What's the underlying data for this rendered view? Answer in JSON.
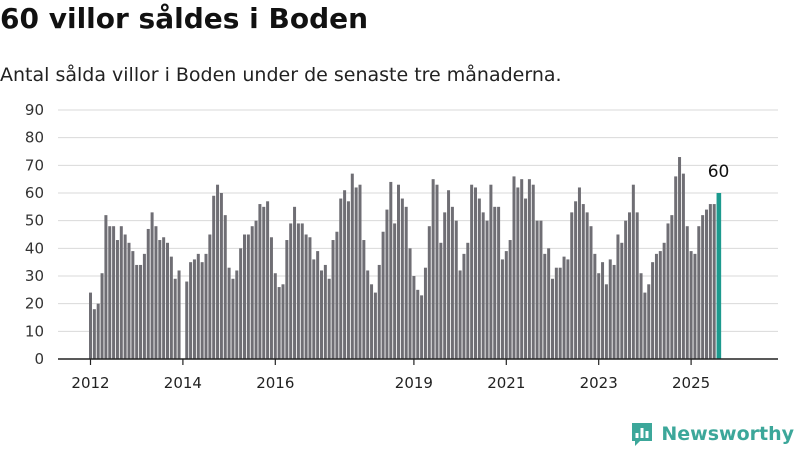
{
  "title": "60 villor såldes i Boden",
  "subtitle": "Antal sålda villor i Boden under de senaste tre månaderna.",
  "brand": {
    "name": "Newsworthy",
    "icon": "newsworthy-logo-icon"
  },
  "colors": {
    "bar": "#6f6e74",
    "highlight": "#1c9a8e",
    "grid": "#d9d9d9",
    "axis": "#222222",
    "brand": "#3ca79a"
  },
  "chart_data": {
    "type": "bar",
    "ylim": [
      0,
      90
    ],
    "yticks": [
      0,
      10,
      20,
      30,
      40,
      50,
      60,
      70,
      80,
      90
    ],
    "xticks": [
      {
        "label": "2012",
        "year": 2012
      },
      {
        "label": "2014",
        "year": 2014
      },
      {
        "label": "2016",
        "year": 2016
      },
      {
        "label": "2019",
        "year": 2019
      },
      {
        "label": "2021",
        "year": 2021
      },
      {
        "label": "2023",
        "year": 2023
      },
      {
        "label": "2025",
        "year": 2025
      }
    ],
    "x_start": "2012-01",
    "grid": "horizontal",
    "x_end": "2025-09",
    "values": [
      24,
      18,
      20,
      31,
      52,
      48,
      48,
      43,
      48,
      45,
      42,
      39,
      34,
      34,
      38,
      47,
      53,
      48,
      43,
      44,
      42,
      37,
      29,
      32,
      null,
      28,
      35,
      36,
      38,
      35,
      38,
      45,
      59,
      63,
      60,
      52,
      33,
      29,
      32,
      40,
      45,
      45,
      48,
      50,
      56,
      55,
      57,
      44,
      31,
      26,
      27,
      43,
      49,
      55,
      49,
      49,
      45,
      44,
      36,
      39,
      32,
      34,
      29,
      43,
      46,
      58,
      61,
      57,
      67,
      62,
      63,
      43,
      32,
      27,
      24,
      34,
      46,
      54,
      64,
      49,
      63,
      58,
      55,
      40,
      30,
      25,
      23,
      33,
      48,
      65,
      63,
      42,
      53,
      61,
      55,
      50,
      32,
      38,
      42,
      63,
      62,
      58,
      53,
      50,
      63,
      55,
      55,
      36,
      39,
      43,
      66,
      62,
      65,
      58,
      65,
      63,
      50,
      50,
      38,
      40,
      29,
      33,
      33,
      37,
      36,
      53,
      57,
      62,
      56,
      53,
      48,
      38,
      31,
      35,
      27,
      36,
      34,
      45,
      42,
      50,
      53,
      63,
      53,
      31,
      24,
      27,
      35,
      38,
      39,
      42,
      49,
      52,
      66,
      73,
      67,
      48,
      39,
      38,
      48,
      52,
      54,
      56,
      56,
      60
    ],
    "highlight_label": "60"
  }
}
